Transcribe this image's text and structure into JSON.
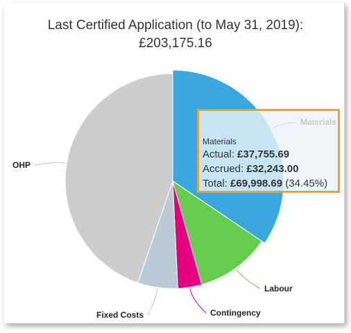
{
  "chart_data": {
    "type": "pie",
    "title": "Last Certified Application (to May 31, 2019):",
    "subtitle": "£203,175.16",
    "slices": [
      {
        "label": "Materials",
        "value": 34.45,
        "color": "#3aa8df"
      },
      {
        "label": "Labour",
        "value": 11.2,
        "color": "#66cc4d"
      },
      {
        "label": "Contingency",
        "value": 3.6,
        "color": "#e5007d"
      },
      {
        "label": "Fixed Costs",
        "value": 6.0,
        "color": "#bccad6"
      },
      {
        "label": "OHP",
        "value": 44.75,
        "color": "#cdcdcd"
      }
    ]
  },
  "tooltip": {
    "header": "Materials",
    "actual_label": "Actual: ",
    "actual_value": "£37,755.69",
    "accrued_label": "Accrued: ",
    "accrued_value": "£32,243.00",
    "total_label": "Total: ",
    "total_value": "£69,998.69",
    "total_pct": " (34.45%)"
  }
}
